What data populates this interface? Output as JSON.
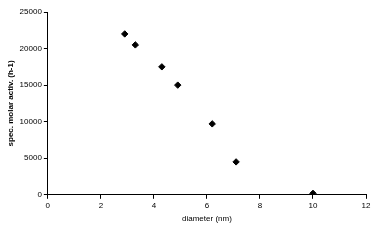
{
  "chart_data": {
    "type": "scatter",
    "x_label": "diameter (nm)",
    "y_label": "spec. molar activ. (h-1)",
    "series": [
      {
        "color": "#000000",
        "marker": "diamond",
        "x": [
          2.9,
          3.3,
          4.3,
          4.9,
          6.2,
          7.1,
          10.0
        ],
        "values": [
          22000,
          20500,
          17500,
          15000,
          9700,
          4500,
          200
        ]
      }
    ],
    "xlim": [
      0,
      12
    ],
    "xticks": [
      0,
      2,
      4,
      6,
      8,
      10,
      12
    ],
    "ylim": [
      0,
      25000
    ],
    "yticks": [
      0,
      5000,
      10000,
      15000,
      20000,
      25000
    ],
    "grid": false
  }
}
